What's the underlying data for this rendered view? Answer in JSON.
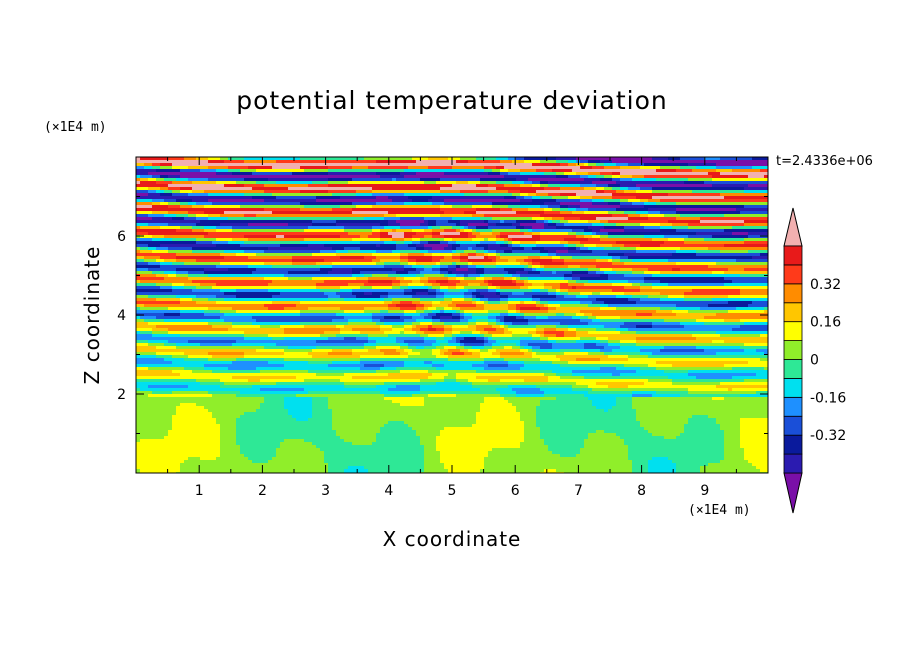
{
  "chart_data": {
    "type": "heatmap",
    "title": "potential temperature deviation",
    "xlabel": "X coordinate",
    "ylabel": "Z coordinate",
    "x_unit": "(×1E4 m)",
    "y_unit": "(×1E4 m)",
    "time_label": "t=2.4336e+06",
    "xlim": [
      0,
      10
    ],
    "ylim": [
      0,
      8
    ],
    "x_ticks": [
      "1",
      "2",
      "3",
      "4",
      "5",
      "6",
      "7",
      "8",
      "9"
    ],
    "y_ticks": [
      "2",
      "4",
      "6"
    ],
    "colorbar": {
      "levels": [
        -0.48,
        -0.4,
        -0.32,
        -0.24,
        -0.16,
        -0.08,
        0,
        0.08,
        0.16,
        0.24,
        0.32,
        0.4,
        0.48
      ],
      "colors": [
        "#7a0fa8",
        "#2b1bb0",
        "#0a1a9c",
        "#1a4fd8",
        "#1e90ff",
        "#00e0ef",
        "#2ee896",
        "#90ee2a",
        "#ffff00",
        "#ffc600",
        "#ff8c00",
        "#ff3a1a",
        "#e81a1a",
        "#f2b0b0"
      ],
      "tick_labels": [
        "-0.32",
        "-0.16",
        "0",
        "0.16",
        "0.32"
      ],
      "tick_values": [
        -0.32,
        -0.16,
        0,
        0.16,
        0.32
      ]
    }
  }
}
